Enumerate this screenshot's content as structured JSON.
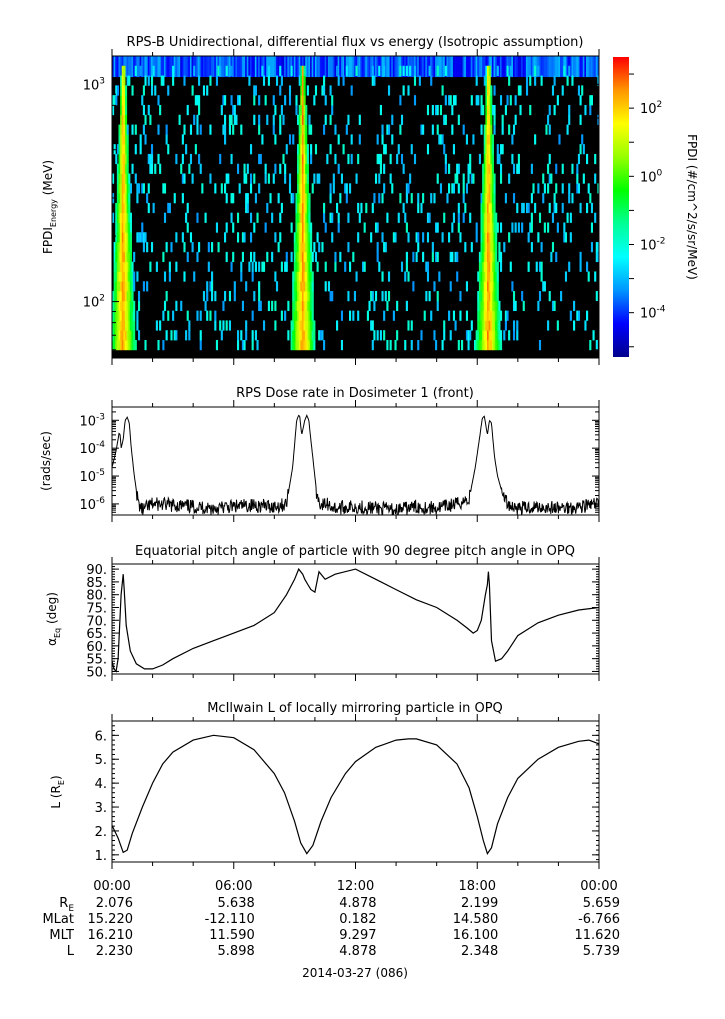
{
  "chart_data": [
    {
      "type": "heatmap",
      "title": "RPS-B  Unidirectional, differential flux vs energy (Isotropic assumption)",
      "ylabel_main": "FPDI",
      "ylabel_sub": "Energy",
      "ylabel_unit": " (MeV)",
      "yscale": "log",
      "ylim": [
        55,
        1350
      ],
      "yticks": [
        {
          "value": 100,
          "base": "10",
          "exp": "2"
        },
        {
          "value": 1000,
          "base": "10",
          "exp": "3"
        }
      ],
      "xlim_hours": [
        0,
        24
      ],
      "colorbar": {
        "label": "FPDI (#/cm^2/s/sr/MeV)",
        "log_range": [
          -5.3,
          3.5
        ],
        "ticks": [
          {
            "value": 2,
            "base": "10",
            "exp": "2"
          },
          {
            "value": 0,
            "base": "10",
            "exp": "0"
          },
          {
            "value": -2,
            "base": "10",
            "exp": "-2"
          },
          {
            "value": -4,
            "base": "10",
            "exp": "-4"
          }
        ],
        "colors": [
          "#00008b",
          "#0000ff",
          "#0096ff",
          "#00ffff",
          "#00ff96",
          "#00ff00",
          "#96ff00",
          "#ffff00",
          "#ff9600",
          "#ff0000"
        ]
      },
      "flux_peaks_hours": [
        0.55,
        9.4,
        18.55
      ]
    },
    {
      "type": "line",
      "title": "RPS  Dose rate in Dosimeter 1 (front)",
      "ylabel": "(rads/sec)",
      "yscale": "log",
      "ylim": [
        4e-07,
        0.003
      ],
      "yticks": [
        {
          "value": 1e-06,
          "base": "10",
          "exp": "-6"
        },
        {
          "value": 1e-05,
          "base": "10",
          "exp": "-5"
        },
        {
          "value": 0.0001,
          "base": "10",
          "exp": "-4"
        },
        {
          "value": 0.001,
          "base": "10",
          "exp": "-3"
        }
      ],
      "series": [
        {
          "x": [
            0,
            0.2,
            0.35,
            0.4,
            0.45,
            0.55,
            0.65,
            0.75,
            0.85,
            0.95,
            1.1,
            1.3,
            1.5,
            2,
            3,
            4,
            5,
            6,
            7,
            8,
            8.6,
            8.9,
            9.1,
            9.2,
            9.25,
            9.35,
            9.5,
            9.6,
            9.7,
            9.8,
            9.95,
            10.1,
            10.3,
            10.6,
            11,
            12,
            13,
            14,
            15,
            16,
            17,
            17.6,
            17.9,
            18.1,
            18.25,
            18.35,
            18.5,
            18.6,
            18.7,
            18.85,
            19.0,
            19.2,
            19.5,
            20,
            21,
            22,
            23,
            24
          ],
          "y": [
            2e-05,
            8e-05,
            0.00035,
            0.0003,
            0.0001,
            0.0002,
            0.001,
            0.0013,
            0.0008,
            0.0001,
            1e-05,
            1e-06,
            6e-07,
            1e-06,
            9e-07,
            8e-07,
            7e-07,
            8e-07,
            9e-07,
            8e-07,
            1e-06,
            2e-05,
            0.001,
            0.0015,
            0.0014,
            0.0003,
            0.001,
            0.0015,
            0.001,
            0.0002,
            2e-05,
            2e-06,
            9e-07,
            1e-06,
            7e-07,
            8e-07,
            7e-07,
            6e-07,
            8e-07,
            7e-07,
            1e-06,
            1.5e-06,
            2e-05,
            0.0002,
            0.0012,
            0.0014,
            0.0003,
            0.001,
            0.0008,
            5e-05,
            1e-05,
            3e-06,
            1e-06,
            7e-07,
            8e-07,
            7e-07,
            8e-07,
            1e-06
          ]
        }
      ]
    },
    {
      "type": "line",
      "title": "Equatorial pitch angle of particle with 90 degree pitch angle in OPQ",
      "ylabel_main": "α",
      "ylabel_sub": "Eq",
      "ylabel_unit": " (deg)",
      "ylim": [
        49,
        92
      ],
      "yticks": [
        "50.",
        "55.",
        "60.",
        "65.",
        "70.",
        "75.",
        "80.",
        "85.",
        "90."
      ],
      "series": [
        {
          "x": [
            0,
            0.1,
            0.2,
            0.3,
            0.45,
            0.55,
            0.6,
            0.7,
            0.9,
            1.2,
            1.6,
            2,
            2.5,
            3,
            4,
            5,
            6,
            7,
            8,
            8.6,
            9.0,
            9.2,
            9.4,
            9.5,
            9.65,
            9.8,
            10.0,
            10.2,
            10.5,
            11.0,
            12.0,
            13,
            14,
            15,
            16,
            17,
            17.5,
            17.8,
            18.0,
            18.2,
            18.4,
            18.5,
            18.55,
            18.6,
            18.7,
            18.9,
            19.2,
            19.5,
            20,
            21,
            22,
            23,
            24
          ],
          "y": [
            54,
            51,
            50,
            55,
            80,
            88,
            82,
            68,
            58,
            53,
            51,
            51,
            52.5,
            55,
            59,
            62,
            65,
            68,
            73,
            80,
            86,
            90,
            88,
            86,
            84,
            82,
            81,
            89,
            86,
            88,
            90,
            86,
            82,
            78,
            75,
            70,
            67,
            65,
            66,
            70,
            80,
            84,
            89,
            84,
            62,
            54,
            55,
            58,
            64,
            69,
            72,
            74,
            75
          ]
        }
      ]
    },
    {
      "type": "line",
      "title": "McIlwain L of locally mirroring particle in OPQ",
      "ylabel_main": "L (R",
      "ylabel_sub": "E",
      "ylabel_unit": ")",
      "ylim": [
        0.7,
        6.6
      ],
      "yticks": [
        "1.",
        "2.",
        "3.",
        "4.",
        "5.",
        "6."
      ],
      "series": [
        {
          "x": [
            0,
            0.3,
            0.55,
            0.75,
            1.0,
            1.5,
            2,
            2.5,
            3,
            4,
            5,
            6,
            7,
            8,
            8.5,
            9.0,
            9.3,
            9.6,
            9.9,
            10.3,
            10.8,
            11.5,
            12,
            13,
            14,
            14.6,
            15,
            16,
            17,
            17.6,
            18.0,
            18.3,
            18.5,
            18.7,
            19.0,
            19.5,
            20,
            21,
            22,
            23,
            23.5,
            24
          ],
          "y": [
            2.23,
            1.7,
            1.1,
            1.2,
            1.9,
            3.0,
            4.0,
            4.8,
            5.3,
            5.8,
            6.0,
            5.9,
            5.4,
            4.4,
            3.6,
            2.4,
            1.5,
            1.05,
            1.4,
            2.4,
            3.4,
            4.4,
            4.9,
            5.5,
            5.8,
            5.85,
            5.85,
            5.6,
            4.8,
            3.8,
            2.6,
            1.6,
            1.05,
            1.3,
            2.3,
            3.4,
            4.2,
            5.0,
            5.5,
            5.75,
            5.8,
            5.64
          ]
        }
      ]
    }
  ],
  "x_axis": {
    "tick_labels": [
      "00:00",
      "06:00",
      "12:00",
      "18:00",
      "00:00"
    ],
    "rows": [
      {
        "label_main": "R",
        "label_sub": "E",
        "values": [
          "2.076",
          "5.638",
          "4.878",
          "2.199",
          "5.659"
        ]
      },
      {
        "label_main": "MLat",
        "label_sub": "",
        "values": [
          "15.220",
          "-12.110",
          "0.182",
          "14.580",
          "-6.766"
        ]
      },
      {
        "label_main": "MLT",
        "label_sub": "",
        "values": [
          "16.210",
          "11.590",
          "9.297",
          "16.100",
          "11.620"
        ]
      },
      {
        "label_main": "L",
        "label_sub": "",
        "values": [
          "2.230",
          "5.898",
          "4.878",
          "2.348",
          "5.739"
        ]
      }
    ],
    "date_label": "2014-03-27 (086)"
  }
}
